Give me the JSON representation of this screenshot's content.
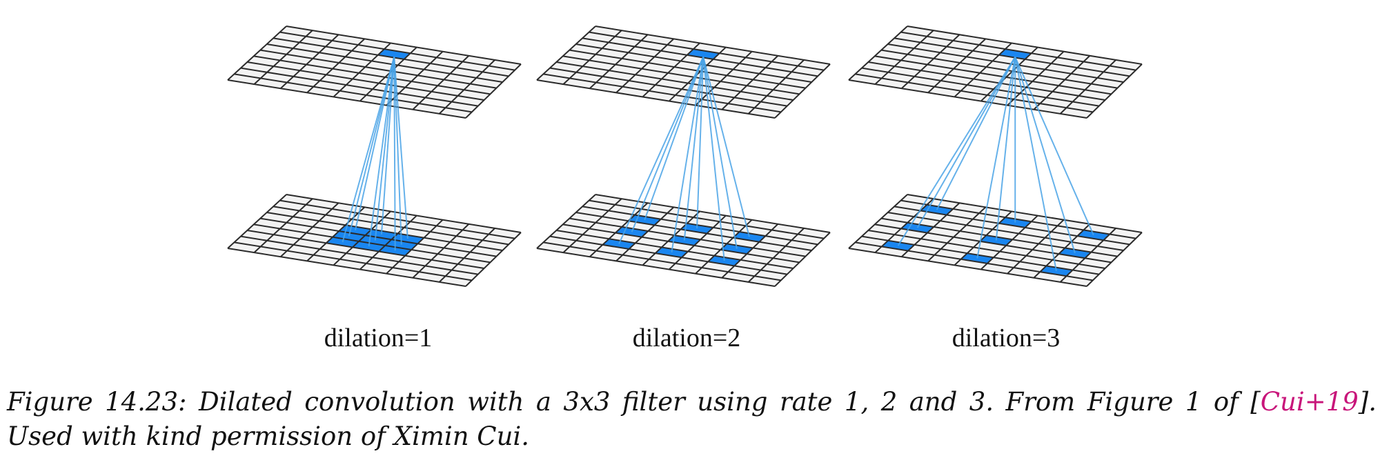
{
  "figure": {
    "panels": [
      {
        "label": "dilation=1",
        "dilation": 1
      },
      {
        "label": "dilation=2",
        "dilation": 2
      },
      {
        "label": "dilation=3",
        "dilation": 3
      }
    ],
    "grid_cells": 9,
    "filter_size": 3,
    "colors": {
      "grid_fill": "#f3f3f3",
      "grid_line": "#2b2b2b",
      "active_cell": "#1a86f0",
      "connector": "#4aa3e6"
    }
  },
  "caption": {
    "prefix": "Figure 14.23: Dilated convolution with a 3x3 filter using rate 1, 2 and 3. From Figure 1 of [",
    "citation": "Cui+19",
    "suffix": "]. Used with kind permission of Ximin Cui."
  }
}
